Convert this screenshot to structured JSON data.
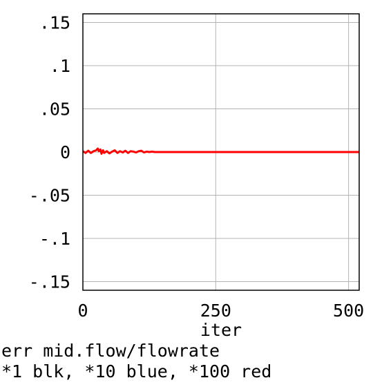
{
  "chart_data": {
    "type": "line",
    "xlabel": "iter",
    "ylabel": "",
    "caption_lines": [
      "err mid.flow/flowrate",
      "*1 blk, *10 blue, *100 red"
    ],
    "xlim": [
      0,
      520
    ],
    "ylim": [
      -0.16,
      0.16
    ],
    "x_ticks": [
      0,
      250,
      500
    ],
    "x_tick_labels": [
      "0",
      "250",
      "500"
    ],
    "y_ticks": [
      0.15,
      0.1,
      0.05,
      0,
      -0.05,
      -0.1,
      -0.15
    ],
    "y_tick_labels": [
      ".15",
      ".1",
      ".05",
      "0",
      "-.05",
      "-.1",
      "-.15"
    ],
    "grid": true,
    "series": [
      {
        "color": "#ff0000",
        "x": [
          0,
          5,
          10,
          15,
          20,
          25,
          28,
          30,
          33,
          35,
          38,
          40,
          45,
          50,
          55,
          60,
          65,
          70,
          75,
          80,
          85,
          90,
          95,
          100,
          105,
          110,
          115,
          120,
          125,
          130,
          135,
          140,
          200,
          300,
          400,
          520
        ],
        "y": [
          0.001,
          -0.001,
          0.0015,
          -0.001,
          0.001,
          0.002,
          0.004,
          0.001,
          0.003,
          -0.002,
          0.002,
          -0.001,
          0.001,
          -0.0015,
          0.0005,
          0.002,
          -0.001,
          0.001,
          -0.0005,
          0.0015,
          -0.001,
          0.001,
          0.0005,
          -0.0005,
          0.001,
          0.0015,
          -0.0005,
          0.0005,
          0.0,
          0.0005,
          0.0,
          0.0,
          0.0,
          0.0,
          0.0,
          0.0
        ]
      }
    ]
  }
}
